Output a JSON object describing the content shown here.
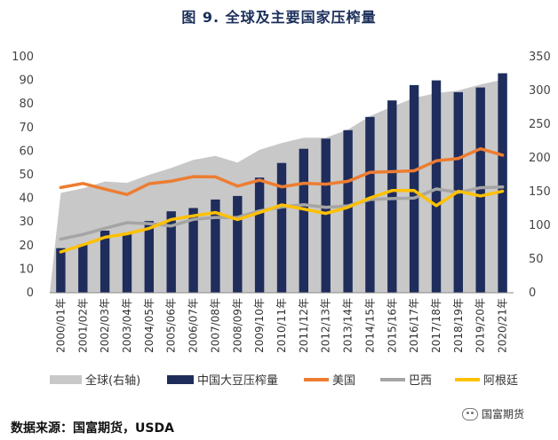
{
  "header": {
    "title": "图 9.   全球及主要国家压榨量"
  },
  "footer": {
    "source": "数据来源：国富期货，USDA",
    "brand": "国富期货",
    "brand_icon": "wechat-icon"
  },
  "colors": {
    "global": "#c8c8c8",
    "china": "#1f2d5c",
    "usa": "#ed7d31",
    "brazil": "#a5a5a5",
    "argentina": "#ffc000"
  },
  "chart_data": {
    "type": "bar",
    "title": "全球及主要国家压榨量",
    "categories": [
      "2000/01年",
      "2001/02年",
      "2002/03年",
      "2003/04年",
      "2004/05年",
      "2005/06年",
      "2006/07年",
      "2007/08年",
      "2008/09年",
      "2009/10年",
      "2010/11年",
      "2011/12年",
      "2012/13年",
      "2013/14年",
      "2014/15年",
      "2015/16年",
      "2016/17年",
      "2017/18年",
      "2018/19年",
      "2019/20年",
      "2020/21年"
    ],
    "left_axis": {
      "ylim": [
        0,
        100
      ],
      "ticks": [
        0,
        10,
        20,
        30,
        40,
        50,
        60,
        70,
        80,
        90,
        100
      ]
    },
    "right_axis": {
      "ylim": [
        0,
        350
      ],
      "ticks": [
        0,
        50,
        100,
        150,
        200,
        250,
        300,
        350
      ]
    },
    "series": [
      {
        "name": "全球(右轴)",
        "type": "area",
        "axis": "right",
        "values": [
          148,
          155,
          165,
          163,
          175,
          185,
          197,
          203,
          193,
          212,
          222,
          230,
          230,
          242,
          262,
          276,
          289,
          296,
          300,
          309,
          316
        ]
      },
      {
        "name": "中国大豆压榨量",
        "type": "bar",
        "axis": "left",
        "values": [
          18.9,
          20.5,
          26.3,
          25.4,
          30.4,
          34.5,
          35.9,
          39.5,
          41.0,
          48.8,
          55.0,
          61.0,
          65.3,
          68.9,
          74.5,
          81.5,
          88.0,
          90.0,
          85.0,
          87.0,
          93.0
        ]
      },
      {
        "name": "美国",
        "type": "line",
        "axis": "left",
        "values": [
          44.6,
          46.3,
          43.9,
          41.6,
          46.2,
          47.3,
          49.2,
          49.1,
          45.2,
          47.7,
          44.9,
          46.4,
          46.0,
          47.2,
          51.0,
          51.3,
          51.7,
          55.9,
          56.9,
          61.0,
          58.3
        ]
      },
      {
        "name": "巴西",
        "type": "line",
        "axis": "left",
        "values": [
          22.7,
          24.7,
          27.3,
          29.7,
          29.3,
          28.3,
          31.1,
          31.9,
          31.9,
          34.7,
          36.3,
          37.3,
          36.2,
          36.8,
          39.5,
          39.9,
          40.1,
          44.0,
          42.5,
          44.5,
          44.8
        ]
      },
      {
        "name": "阿根廷",
        "type": "line",
        "axis": "left",
        "values": [
          17.3,
          20.3,
          23.5,
          25.0,
          27.3,
          31.0,
          32.6,
          34.0,
          31.0,
          34.0,
          37.2,
          35.5,
          33.6,
          36.2,
          40.2,
          43.3,
          43.3,
          36.9,
          43.0,
          41.0,
          43.0
        ]
      }
    ],
    "legend": {
      "position": "bottom"
    },
    "grid": false
  }
}
